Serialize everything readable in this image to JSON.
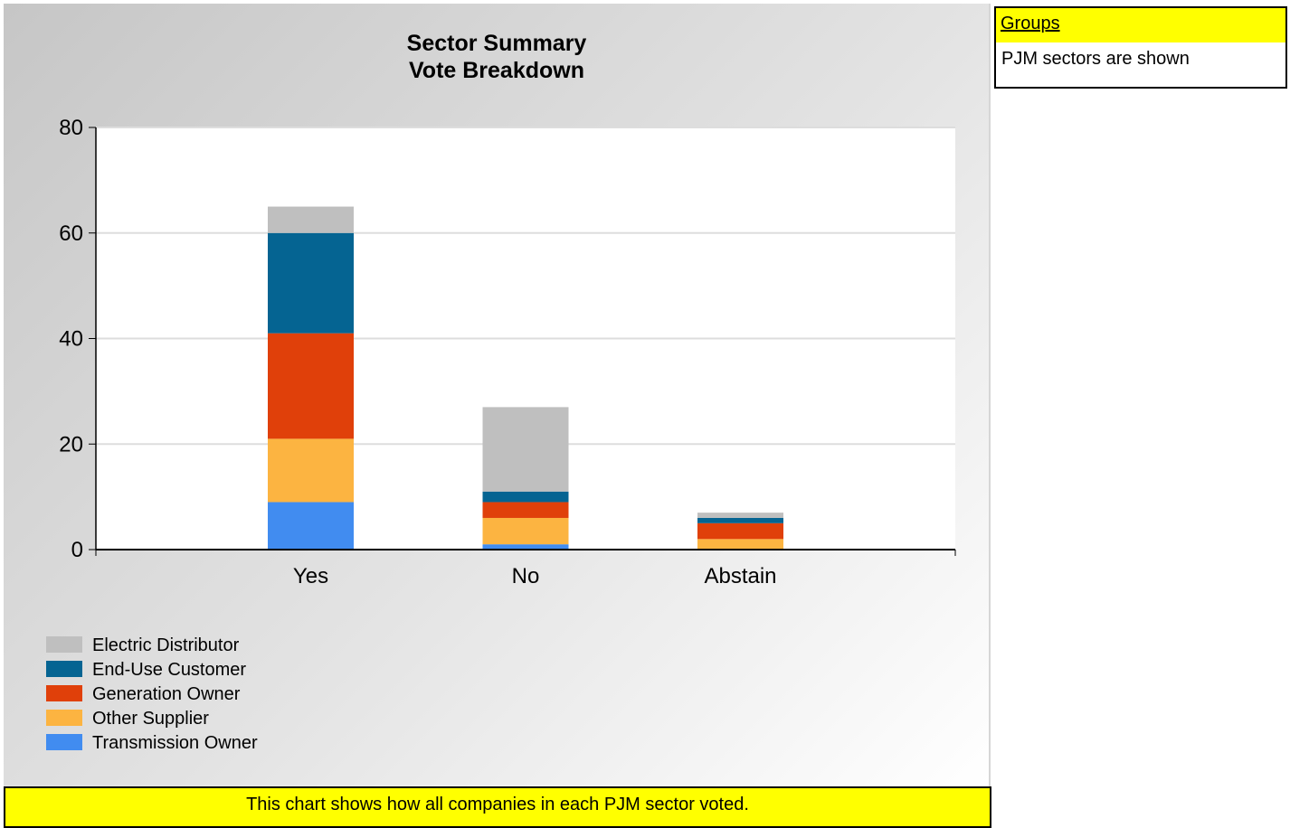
{
  "chart_data": {
    "type": "bar",
    "stacked": true,
    "title": "Sector Summary",
    "subtitle": "Vote Breakdown",
    "categories": [
      "Yes",
      "No",
      "Abstain"
    ],
    "ylim": [
      0,
      80
    ],
    "yticks": [
      0,
      20,
      40,
      60,
      80
    ],
    "grid": true,
    "legend_position": "bottom-left",
    "series": [
      {
        "name": "Transmission Owner",
        "color": "#418cf0",
        "values": [
          9,
          1,
          0
        ]
      },
      {
        "name": "Other Supplier",
        "color": "#fcb441",
        "values": [
          12,
          5,
          2
        ]
      },
      {
        "name": "Generation Owner",
        "color": "#e0400a",
        "values": [
          20,
          3,
          3
        ]
      },
      {
        "name": "End-Use Customer",
        "color": "#056492",
        "values": [
          19,
          2,
          1
        ]
      },
      {
        "name": "Electric Distributor",
        "color": "#bfbfbf",
        "values": [
          5,
          16,
          1
        ]
      }
    ],
    "legend_order": [
      "Electric Distributor",
      "End-Use Customer",
      "Generation Owner",
      "Other Supplier",
      "Transmission Owner"
    ]
  },
  "caption": "This chart shows how all companies in each PJM sector voted.",
  "groups": {
    "title": "Groups",
    "description": "PJM sectors are shown"
  },
  "colors": {
    "highlight": "#ffff00",
    "gridline": "#dddddd"
  }
}
